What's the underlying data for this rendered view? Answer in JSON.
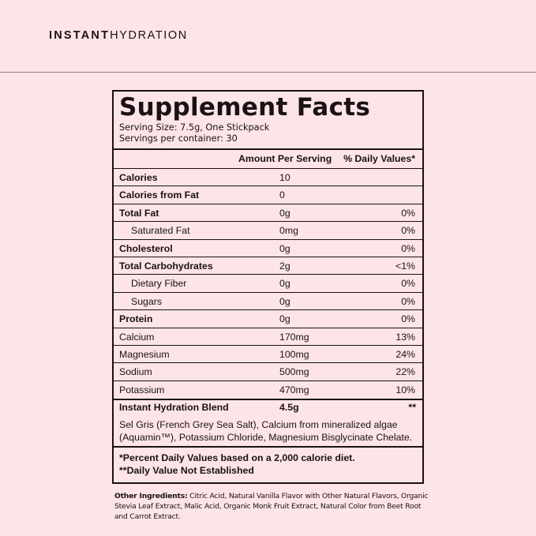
{
  "brand": {
    "bold": "INSTANT",
    "light": "HYDRATION"
  },
  "facts": {
    "title": "Supplement Facts",
    "serving_size": "Serving Size: 7.5g, One Stickpack",
    "servings_per_container": "Servings per container: 30",
    "col_amount": "Amount Per Serving",
    "col_dv": "% Daily Values*",
    "rows": [
      {
        "label": "Calories",
        "amount": "10",
        "dv": "",
        "bold": true,
        "indent": false
      },
      {
        "label": "Calories from Fat",
        "amount": "0",
        "dv": "",
        "bold": true,
        "indent": false
      },
      {
        "label": "Total Fat",
        "amount": "0g",
        "dv": "0%",
        "bold": true,
        "indent": false
      },
      {
        "label": "Saturated Fat",
        "amount": "0mg",
        "dv": "0%",
        "bold": false,
        "indent": true
      },
      {
        "label": "Cholesterol",
        "amount": "0g",
        "dv": "0%",
        "bold": true,
        "indent": false
      },
      {
        "label": "Total Carbohydrates",
        "amount": "2g",
        "dv": "<1%",
        "bold": true,
        "indent": false
      },
      {
        "label": "Dietary Fiber",
        "amount": "0g",
        "dv": "0%",
        "bold": false,
        "indent": true
      },
      {
        "label": "Sugars",
        "amount": "0g",
        "dv": "0%",
        "bold": false,
        "indent": true
      },
      {
        "label": "Protein",
        "amount": "0g",
        "dv": "0%",
        "bold": true,
        "indent": false
      },
      {
        "label": "Calcium",
        "amount": "170mg",
        "dv": "13%",
        "bold": false,
        "indent": false
      },
      {
        "label": "Magnesium",
        "amount": "100mg",
        "dv": "24%",
        "bold": false,
        "indent": false
      },
      {
        "label": "Sodium",
        "amount": "500mg",
        "dv": "22%",
        "bold": false,
        "indent": false
      },
      {
        "label": "Potassium",
        "amount": "470mg",
        "dv": "10%",
        "bold": false,
        "indent": false
      }
    ],
    "blend": {
      "label": "Instant Hydration Blend",
      "amount": "4.5g",
      "dv": "**",
      "ingredients": "Sel Gris (French Grey Sea Salt), Calcium from mineralized algae (Aquamin™), Potassium Chloride, Magnesium Bisglycinate Chelate."
    },
    "footnote_1": "*Percent Daily Values based on a 2,000 calorie diet.",
    "footnote_2": "**Daily Value Not Established"
  },
  "other_ingredients": {
    "label": "Other Ingredients:",
    "text": " Citric Acid, Natural Vanilla Flavor with Other Natural Flavors, Organic Stevia Leaf Extract, Malic Acid, Organic Monk Fruit Extract, Natural Color from Beet Root and Carrot Extract."
  },
  "colors": {
    "background": "#fce4e8",
    "ink": "#1a1214"
  }
}
